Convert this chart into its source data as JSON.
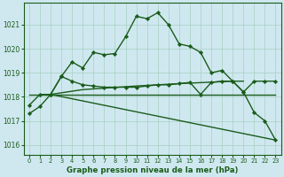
{
  "background_color": "#cfe8f0",
  "grid_color": "#a8cfc0",
  "line_color": "#1a5c1a",
  "title": "Graphe pression niveau de la mer (hPa)",
  "xlim": [
    -0.5,
    23.5
  ],
  "ylim": [
    1015.6,
    1021.9
  ],
  "yticks": [
    1016,
    1017,
    1018,
    1019,
    1020,
    1021
  ],
  "xticks": [
    0,
    1,
    2,
    3,
    4,
    5,
    6,
    7,
    8,
    9,
    10,
    11,
    12,
    13,
    14,
    15,
    16,
    17,
    18,
    19,
    20,
    21,
    22,
    23
  ],
  "series": [
    {
      "x": [
        0,
        1,
        2,
        3,
        4,
        5,
        6,
        7,
        8,
        9,
        10,
        11,
        12,
        13,
        14,
        15,
        16,
        17,
        18,
        19,
        20,
        21,
        22,
        23
      ],
      "y": [
        1017.3,
        1017.6,
        1018.1,
        1018.85,
        1019.45,
        1019.2,
        1019.85,
        1019.75,
        1019.8,
        1020.5,
        1021.35,
        1021.25,
        1021.5,
        1021.0,
        1020.2,
        1020.1,
        1019.85,
        1019.0,
        1019.1,
        1018.65,
        1018.2,
        1017.35,
        1017.0,
        1016.2
      ],
      "marker": "D",
      "markersize": 2.2,
      "linewidth": 1.0
    },
    {
      "x": [
        0,
        2,
        23
      ],
      "y": [
        1018.1,
        1018.1,
        1018.1
      ],
      "marker": null,
      "markersize": 0,
      "linewidth": 1.0
    },
    {
      "x": [
        2,
        5,
        10,
        14,
        19,
        20
      ],
      "y": [
        1018.1,
        1018.3,
        1018.45,
        1018.55,
        1018.65,
        1018.65
      ],
      "marker": null,
      "markersize": 0,
      "linewidth": 1.0
    },
    {
      "x": [
        2,
        23
      ],
      "y": [
        1018.1,
        1016.2
      ],
      "marker": null,
      "markersize": 0,
      "linewidth": 1.0
    },
    {
      "x": [
        0,
        1,
        2,
        3,
        4,
        5,
        6,
        7,
        8,
        9,
        10,
        11,
        12,
        13,
        14,
        15,
        16,
        17,
        18,
        19,
        20,
        21,
        22,
        23
      ],
      "y": [
        1017.65,
        1018.1,
        1018.1,
        1018.85,
        1018.65,
        1018.5,
        1018.45,
        1018.4,
        1018.4,
        1018.4,
        1018.4,
        1018.45,
        1018.5,
        1018.5,
        1018.55,
        1018.6,
        1018.1,
        1018.6,
        1018.65,
        1018.65,
        1018.2,
        1018.65,
        1018.65,
        1018.65
      ],
      "marker": "D",
      "markersize": 2.2,
      "linewidth": 1.0
    }
  ]
}
